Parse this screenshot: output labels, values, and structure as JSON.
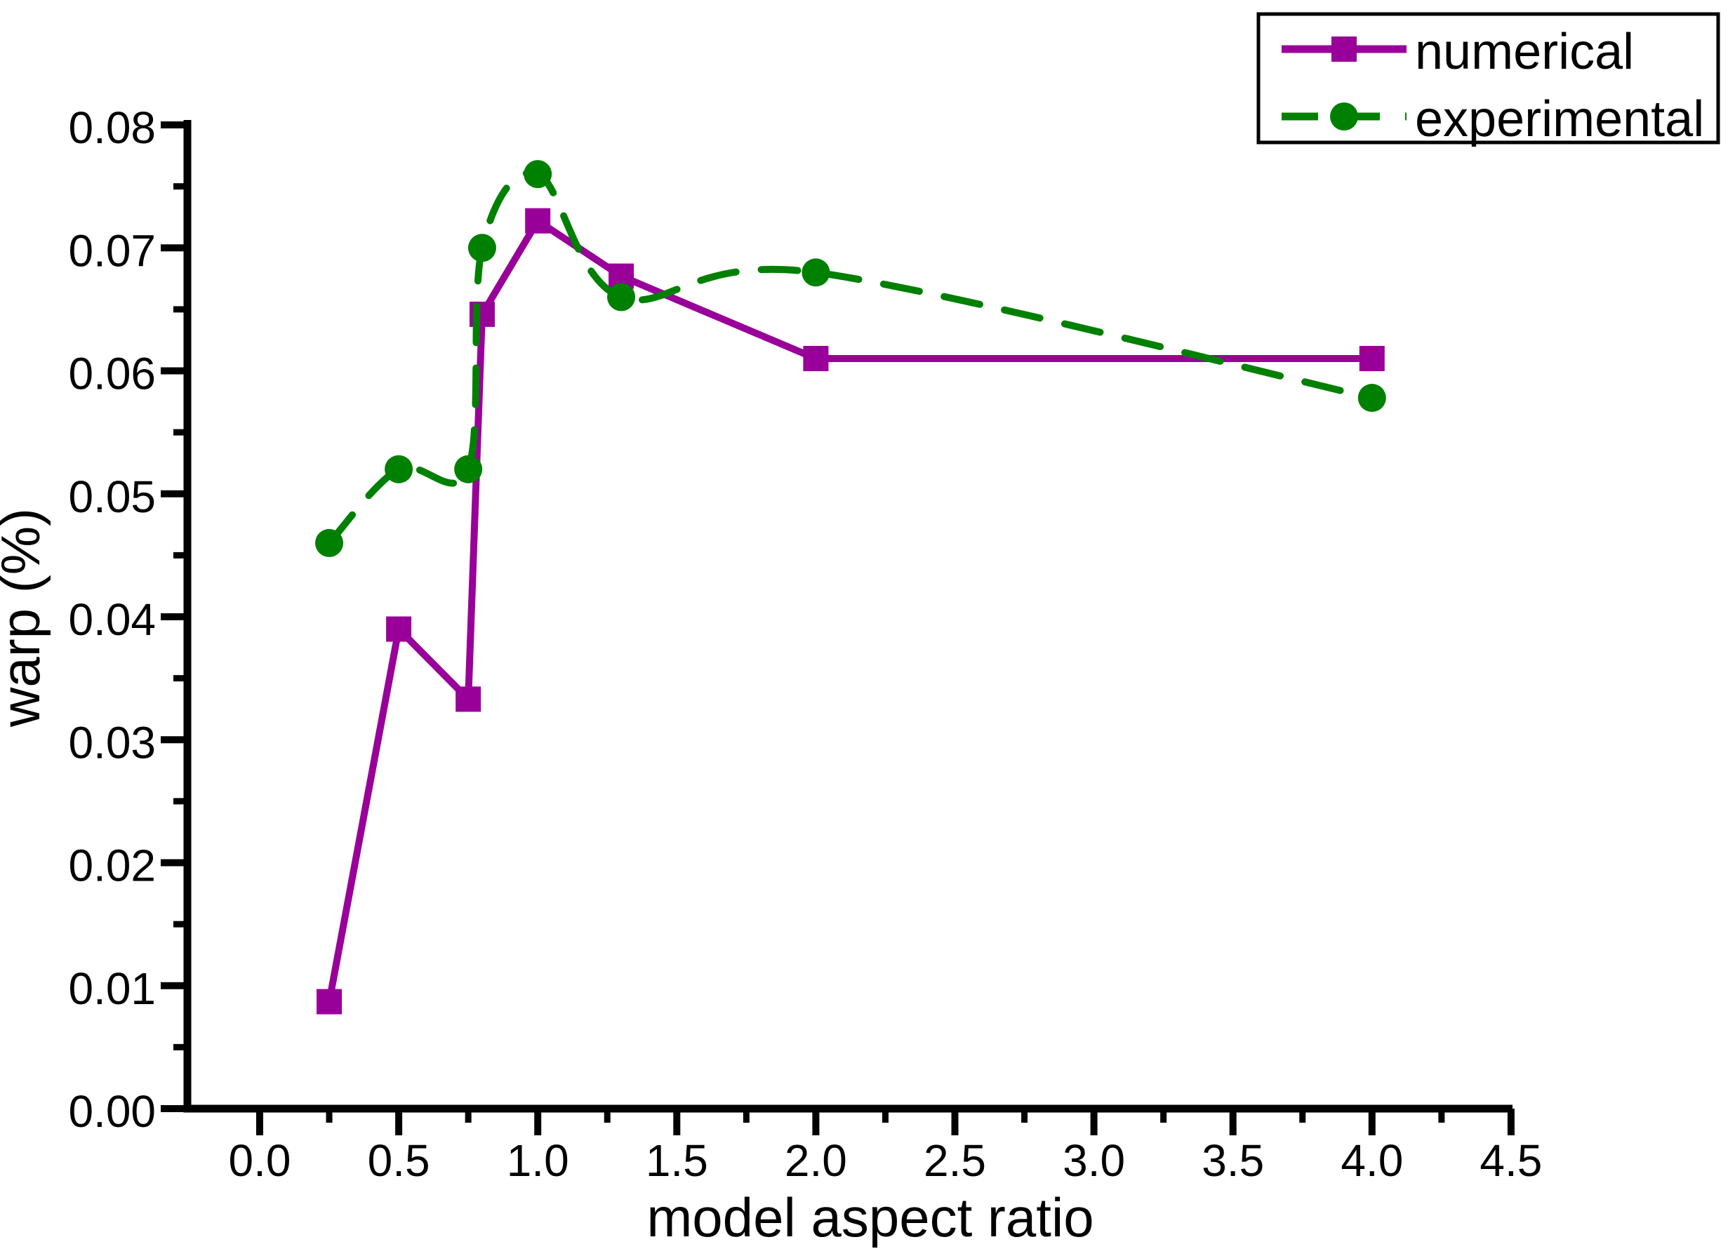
{
  "figure": {
    "background": "#ffffff",
    "axis_color": "#000000",
    "text_color": "#000000"
  },
  "chart_data": {
    "type": "line",
    "title": "",
    "xlabel": "model aspect ratio",
    "ylabel": "warp (%)",
    "xlim": [
      -0.26,
      4.51
    ],
    "ylim": [
      0.0,
      0.08
    ],
    "grid": false,
    "legend_position": "top-right",
    "x_tick_labels": [
      "0.0",
      "0.5",
      "1.0",
      "1.5",
      "2.0",
      "2.5",
      "3.0",
      "3.5",
      "4.0",
      "4.5"
    ],
    "y_tick_labels": [
      "0.00",
      "0.01",
      "0.02",
      "0.03",
      "0.04",
      "0.05",
      "0.06",
      "0.07",
      "0.08"
    ],
    "x_minor_ticks": [
      0.25,
      0.75,
      1.25,
      1.75,
      2.25,
      2.75,
      3.25,
      3.75,
      4.25
    ],
    "y_minor_ticks": [
      0.005,
      0.015,
      0.025,
      0.035,
      0.045,
      0.055,
      0.065,
      0.075
    ],
    "series": [
      {
        "name": "numerical",
        "color": "#990099",
        "marker": "square",
        "line_style": "solid",
        "x": [
          0.25,
          0.5,
          0.75,
          0.8,
          1.0,
          1.3,
          2.0,
          4.0
        ],
        "y": [
          0.0087,
          0.039,
          0.0333,
          0.0646,
          0.0722,
          0.0677,
          0.061,
          0.061
        ]
      },
      {
        "name": "experimental",
        "color": "#008000",
        "marker": "circle",
        "line_style": "dashed",
        "x": [
          0.25,
          0.5,
          0.75,
          0.8,
          1.0,
          1.3,
          2.0,
          4.0
        ],
        "y": [
          0.046,
          0.052,
          0.052,
          0.07,
          0.076,
          0.066,
          0.068,
          0.0578
        ]
      }
    ]
  }
}
